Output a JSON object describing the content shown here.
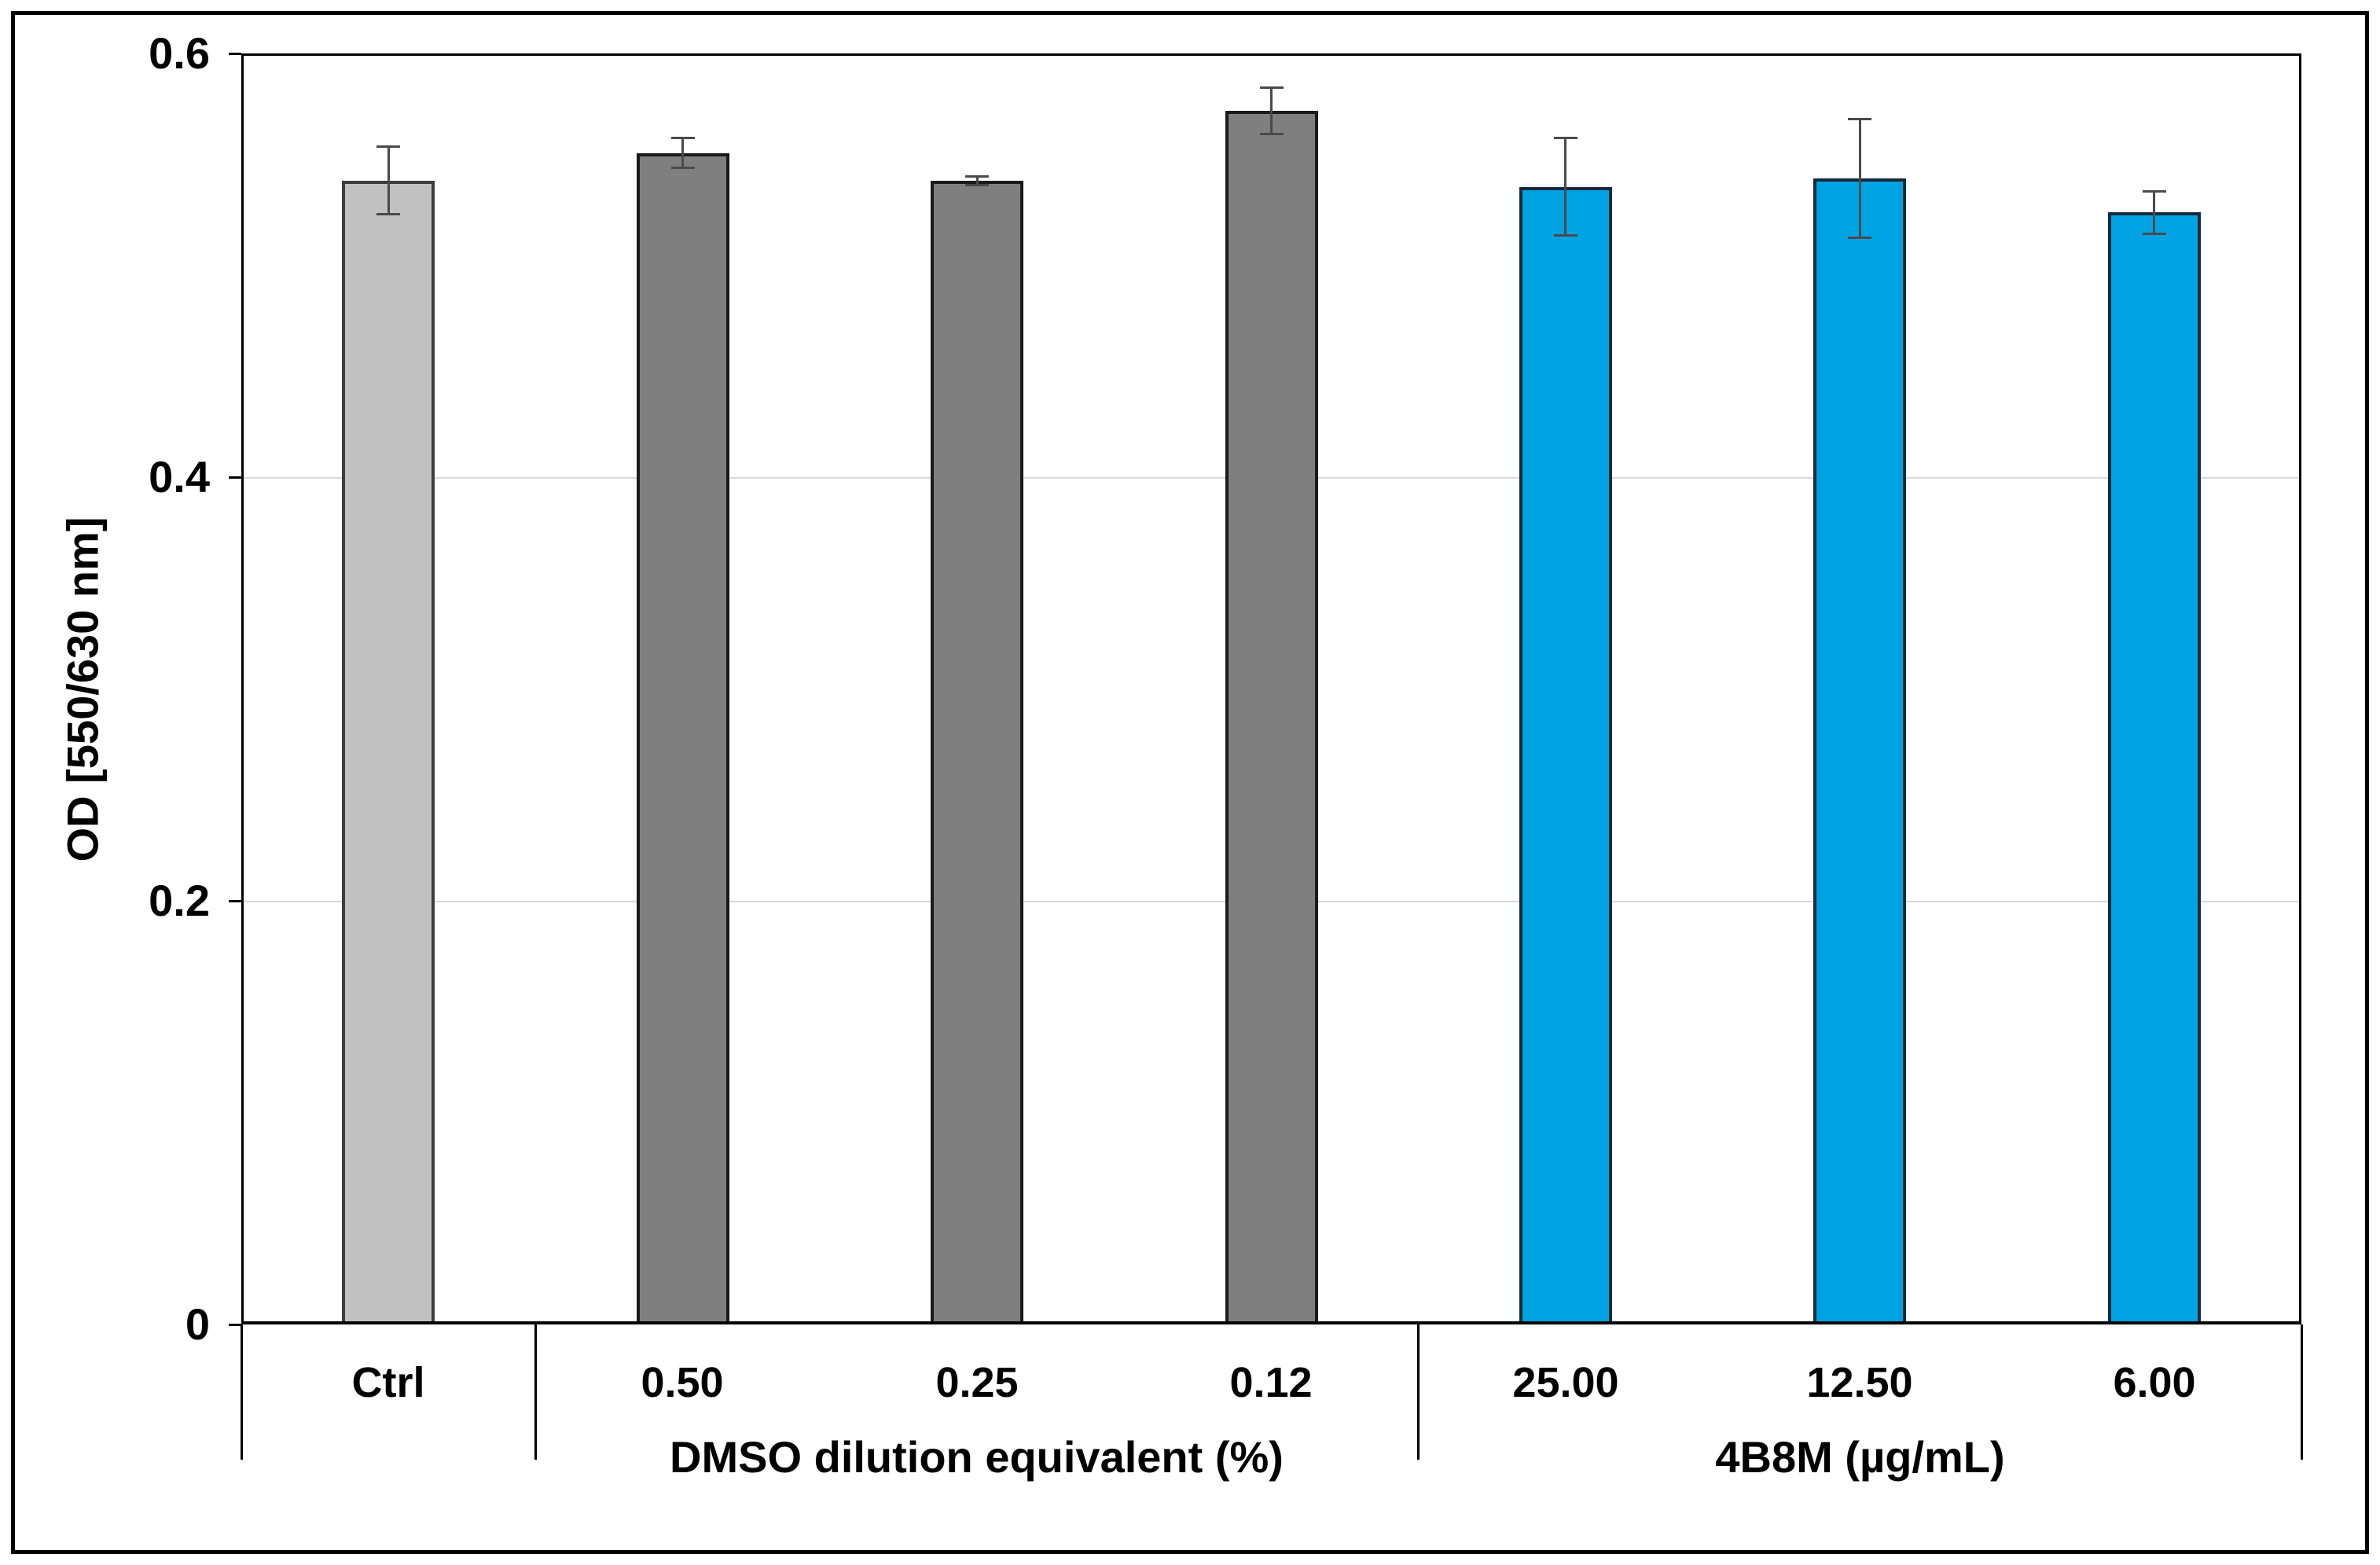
{
  "figure": {
    "background": "#FFFFFF",
    "outer_border_color": "#000000"
  },
  "chart_data": {
    "type": "bar",
    "title": "",
    "ylabel": "OD [550/630 nm]",
    "xlabel": "",
    "ylim": [
      0,
      0.6
    ],
    "yticks": [
      0,
      0.2,
      0.4,
      0.6
    ],
    "ytick_labels": [
      "0",
      "0.2",
      "0.4",
      "0.6"
    ],
    "gridlines": [
      0.2,
      0.4
    ],
    "gridline_color": "#D9D9D9",
    "grid": "horizontal-only",
    "legend": "none",
    "categories": [
      "Ctrl",
      "0.50",
      "0.25",
      "0.12",
      "25.00",
      "12.50",
      "6.00"
    ],
    "values": [
      0.54,
      0.553,
      0.54,
      0.573,
      0.537,
      0.541,
      0.525
    ],
    "errors": [
      0.016,
      0.007,
      0.002,
      0.011,
      0.023,
      0.028,
      0.01
    ],
    "bar_fill_colors": [
      "#C1C1C1",
      "#7F7F7F",
      "#7F7F7F",
      "#7F7F7F",
      "#00A3E2",
      "#00A3E2",
      "#00A3E2"
    ],
    "bar_border_colors": [
      "#3D3D3D",
      "#1A1A1A",
      "#1A1A1A",
      "#1A1A1A",
      "#16293B",
      "#16293B",
      "#16293B"
    ],
    "error_bar_color": "#4A4A4A",
    "group_labels": [
      {
        "label": "DMSO dilution equivalent (%)",
        "start": 1,
        "end": 3
      },
      {
        "label": "4B8M (µg/mL)",
        "start": 4,
        "end": 6
      }
    ],
    "series_colors_meaning": {
      "#C1C1C1": "untreated control",
      "#7F7F7F": "DMSO dilution equivalent (%)",
      "#00A3E2": "4B8M (µg/mL)"
    }
  }
}
